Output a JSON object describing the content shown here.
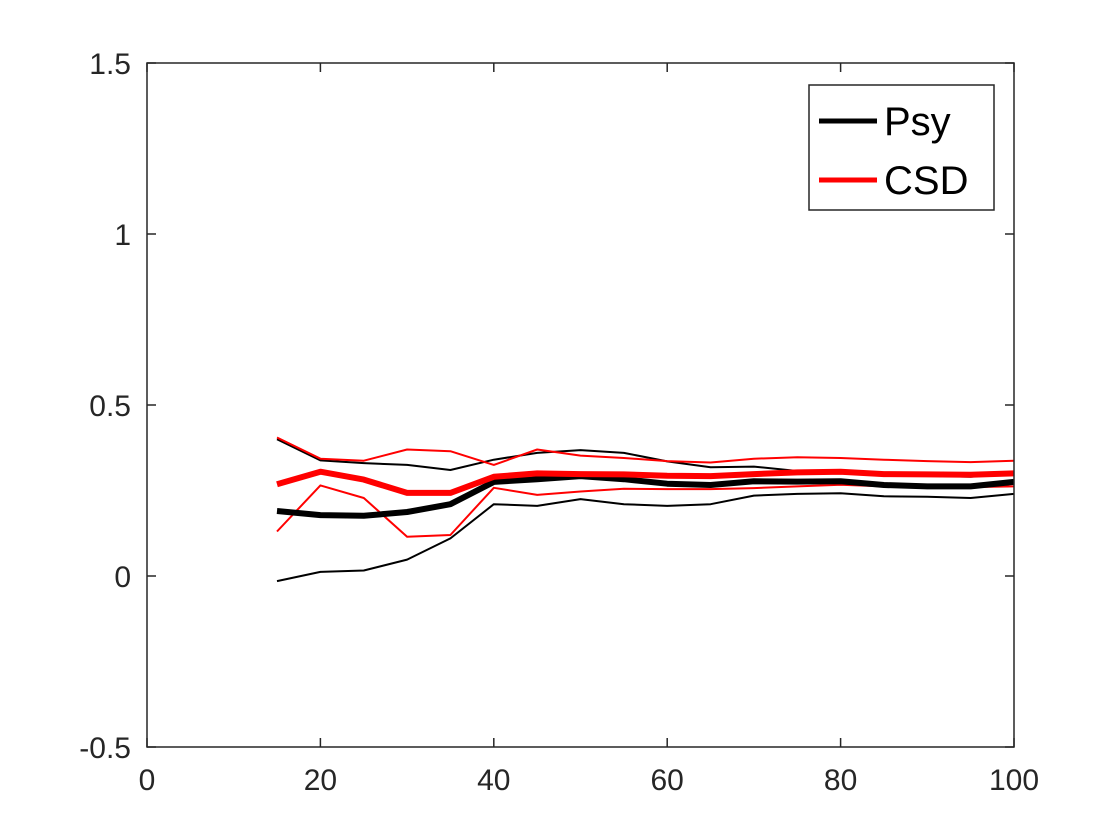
{
  "chart_data": {
    "type": "line",
    "title": "",
    "xlabel": "",
    "ylabel": "",
    "xlim": [
      0,
      100
    ],
    "ylim": [
      -0.5,
      1.5
    ],
    "grid": false,
    "legend_position": "top-right",
    "x_ticks": [
      0,
      20,
      40,
      60,
      80,
      100
    ],
    "x_tick_labels": [
      "0",
      "20",
      "40",
      "60",
      "80",
      "100"
    ],
    "y_ticks": [
      -0.5,
      0,
      0.5,
      1,
      1.5
    ],
    "y_tick_labels": [
      "-0.5",
      "0",
      "0.5",
      "1",
      "1.5"
    ],
    "x": [
      15,
      20,
      25,
      30,
      35,
      40,
      45,
      50,
      55,
      60,
      65,
      70,
      75,
      80,
      85,
      90,
      95,
      100
    ],
    "legend": [
      {
        "name": "Psy",
        "color": "#000000"
      },
      {
        "name": "CSD",
        "color": "#ff0000"
      }
    ],
    "series": [
      {
        "group": "Psy",
        "role": "mean",
        "color": "#000000",
        "width": 6,
        "values": [
          0.19,
          0.178,
          0.176,
          0.187,
          0.21,
          0.275,
          0.283,
          0.292,
          0.283,
          0.27,
          0.266,
          0.277,
          0.276,
          0.277,
          0.266,
          0.262,
          0.262,
          0.275
        ]
      },
      {
        "group": "Psy",
        "role": "upper",
        "color": "#000000",
        "width": 2,
        "values": [
          0.4,
          0.338,
          0.33,
          0.325,
          0.31,
          0.34,
          0.36,
          0.368,
          0.36,
          0.335,
          0.318,
          0.32,
          0.307,
          0.305,
          0.297,
          0.293,
          0.29,
          0.3
        ]
      },
      {
        "group": "Psy",
        "role": "lower",
        "color": "#000000",
        "width": 2,
        "values": [
          -0.015,
          0.012,
          0.016,
          0.048,
          0.11,
          0.21,
          0.205,
          0.225,
          0.21,
          0.205,
          0.21,
          0.235,
          0.24,
          0.242,
          0.233,
          0.232,
          0.228,
          0.24
        ]
      },
      {
        "group": "CSD",
        "role": "mean",
        "color": "#ff0000",
        "width": 6,
        "values": [
          0.268,
          0.305,
          0.282,
          0.243,
          0.243,
          0.29,
          0.3,
          0.298,
          0.297,
          0.293,
          0.292,
          0.298,
          0.303,
          0.305,
          0.298,
          0.297,
          0.296,
          0.3
        ]
      },
      {
        "group": "CSD",
        "role": "upper",
        "color": "#ff0000",
        "width": 2,
        "values": [
          0.405,
          0.343,
          0.337,
          0.37,
          0.365,
          0.325,
          0.37,
          0.352,
          0.345,
          0.336,
          0.332,
          0.343,
          0.347,
          0.345,
          0.34,
          0.336,
          0.333,
          0.337
        ]
      },
      {
        "group": "CSD",
        "role": "lower",
        "color": "#ff0000",
        "width": 2,
        "values": [
          0.13,
          0.265,
          0.228,
          0.115,
          0.12,
          0.258,
          0.237,
          0.247,
          0.255,
          0.254,
          0.254,
          0.257,
          0.262,
          0.267,
          0.262,
          0.26,
          0.26,
          0.262
        ]
      }
    ]
  }
}
